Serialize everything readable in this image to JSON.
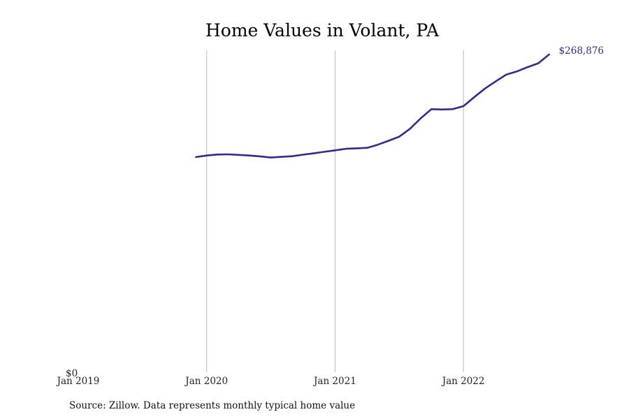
{
  "chart_data": {
    "type": "line",
    "title": "Home Values in Volant, PA",
    "xlabel": "",
    "ylabel": "",
    "x_tick_labels": [
      "Jan 2019",
      "Jan 2020",
      "Jan 2021",
      "Jan 2022"
    ],
    "y_tick_labels": [
      "$0"
    ],
    "ylim": [
      0,
      268876
    ],
    "grid": "vertical lines at each January",
    "legend": "none",
    "series_color": "#2e2c8c",
    "end_label": "$268,876",
    "series": [
      {
        "x": [
          "2019-12",
          "2020-01",
          "2020-02",
          "2020-03",
          "2020-04",
          "2020-05",
          "2020-06",
          "2020-07",
          "2020-08",
          "2020-09",
          "2020-10",
          "2020-11",
          "2020-12",
          "2021-01",
          "2021-02",
          "2021-03",
          "2021-04",
          "2021-05",
          "2021-06",
          "2021-07",
          "2021-08",
          "2021-09",
          "2021-10",
          "2021-11",
          "2021-12",
          "2022-01",
          "2022-02",
          "2022-03",
          "2022-04",
          "2022-05",
          "2022-06",
          "2022-07",
          "2022-08",
          "2022-09"
        ],
        "values": [
          183200,
          184500,
          185300,
          185500,
          185000,
          184500,
          183800,
          182800,
          183400,
          183900,
          185200,
          186300,
          187600,
          188800,
          190100,
          190500,
          190900,
          193500,
          196800,
          200200,
          206800,
          215500,
          223200,
          222900,
          223200,
          225700,
          233200,
          240300,
          246300,
          252000,
          254700,
          258300,
          261500,
          268876
        ]
      }
    ],
    "source_note": "Source: Zillow. Data represents monthly typical home value"
  }
}
